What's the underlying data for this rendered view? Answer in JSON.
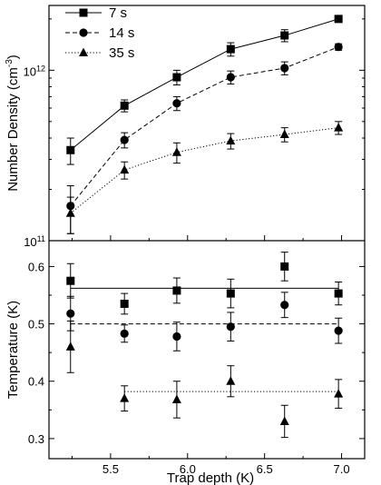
{
  "chart_data": [
    {
      "type": "line",
      "panel": "top",
      "x": [
        5.24,
        5.59,
        5.93,
        6.28,
        6.63,
        6.98
      ],
      "xlim": [
        5.1,
        7.15
      ],
      "ylim": [
        100000000000.0,
        2400000000000.0
      ],
      "yscale": "log",
      "y_ticks": [
        {
          "value": 100000000000.0,
          "mantissa": "10",
          "exponent": "11"
        },
        {
          "value": 1000000000000.0,
          "mantissa": "10",
          "exponent": "12"
        }
      ],
      "ylabel": {
        "prefix": "Number Density (cm",
        "exponent": "-3",
        "suffix": ")"
      },
      "legend_position": "top-left",
      "series": [
        {
          "name": "7 s",
          "marker": "square",
          "line": "solid",
          "values": [
            340000000000.0,
            620000000000.0,
            910000000000.0,
            1330000000000.0,
            1600000000000.0,
            2000000000000.0
          ],
          "errors": [
            60000000000.0,
            50000000000.0,
            90000000000.0,
            120000000000.0,
            130000000000.0,
            80000000000.0
          ]
        },
        {
          "name": "14 s",
          "marker": "circle",
          "line": "dashed",
          "values": [
            160000000000.0,
            390000000000.0,
            640000000000.0,
            910000000000.0,
            1030000000000.0,
            1370000000000.0
          ],
          "errors": [
            50000000000.0,
            40000000000.0,
            60000000000.0,
            80000000000.0,
            90000000000.0,
            60000000000.0
          ]
        },
        {
          "name": "35 s",
          "marker": "triangle",
          "line": "dotted",
          "values": [
            145000000000.0,
            260000000000.0,
            330000000000.0,
            385000000000.0,
            420000000000.0,
            460000000000.0
          ],
          "errors": [
            35000000000.0,
            30000000000.0,
            45000000000.0,
            40000000000.0,
            40000000000.0,
            40000000000.0
          ]
        }
      ]
    },
    {
      "type": "scatter",
      "panel": "bottom",
      "x": [
        5.24,
        5.59,
        5.93,
        6.28,
        6.63,
        6.98
      ],
      "xlim": [
        5.1,
        7.15
      ],
      "ylim": [
        0.265,
        0.645
      ],
      "x_ticks": [
        "5.5",
        "6.0",
        "6.5",
        "7.0"
      ],
      "y_ticks": [
        "0.3",
        "0.4",
        "0.5",
        "0.6"
      ],
      "xlabel": "Trap depth (K)",
      "ylabel": "Temperature (K)",
      "series": [
        {
          "marker": "square",
          "fit_line": "solid",
          "fit_value": 0.562,
          "values": [
            0.575,
            0.535,
            0.558,
            0.553,
            0.6,
            0.553
          ],
          "errors": [
            0.03,
            0.018,
            0.022,
            0.025,
            0.025,
            0.02
          ]
        },
        {
          "marker": "circle",
          "fit_line": "dashed",
          "fit_value": 0.5,
          "values": [
            0.518,
            0.483,
            0.478,
            0.495,
            0.533,
            0.488
          ],
          "errors": [
            0.03,
            0.015,
            0.025,
            0.025,
            0.022,
            0.022
          ]
        },
        {
          "marker": "triangle",
          "fit_line": "dotted",
          "fit_value": 0.382,
          "values": [
            0.46,
            0.37,
            0.368,
            0.4,
            0.33,
            0.378
          ],
          "errors": [
            0.045,
            0.022,
            0.032,
            0.027,
            0.028,
            0.025
          ]
        }
      ]
    }
  ]
}
